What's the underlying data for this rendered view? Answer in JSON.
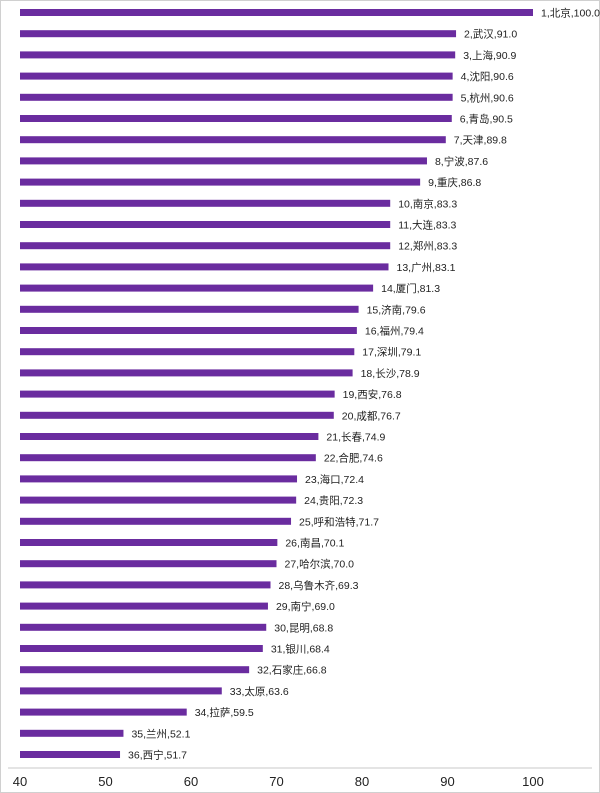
{
  "chart_data": {
    "type": "bar",
    "orientation": "horizontal",
    "title": "",
    "xlabel": "",
    "ylabel": "",
    "xlim": [
      40,
      100
    ],
    "x_ticks": [
      40,
      50,
      60,
      70,
      80,
      90,
      100
    ],
    "grid": false,
    "legend": "none",
    "bar_color": "#6a2c9f",
    "categories": [
      "北京",
      "武汉",
      "上海",
      "沈阳",
      "杭州",
      "青岛",
      "天津",
      "宁波",
      "重庆",
      "南京",
      "大连",
      "郑州",
      "广州",
      "厦门",
      "济南",
      "福州",
      "深圳",
      "长沙",
      "西安",
      "成都",
      "长春",
      "合肥",
      "海口",
      "贵阳",
      "呼和浩特",
      "南昌",
      "哈尔滨",
      "乌鲁木齐",
      "南宁",
      "昆明",
      "银川",
      "石家庄",
      "太原",
      "拉萨",
      "兰州",
      "西宁"
    ],
    "values": [
      100.0,
      91.0,
      90.9,
      90.6,
      90.6,
      90.5,
      89.8,
      87.6,
      86.8,
      83.3,
      83.3,
      83.3,
      83.1,
      81.3,
      79.6,
      79.4,
      79.1,
      78.9,
      76.8,
      76.7,
      74.9,
      74.6,
      72.4,
      72.3,
      71.7,
      70.1,
      70.0,
      69.3,
      69.0,
      68.8,
      68.4,
      66.8,
      63.6,
      59.5,
      52.1,
      51.7
    ],
    "data_labels": [
      "1,北京,100.0",
      "2,武汉,91.0",
      "3,上海,90.9",
      "4,沈阳,90.6",
      "5,杭州,90.6",
      "6,青岛,90.5",
      "7,天津,89.8",
      "8,宁波,87.6",
      "9,重庆,86.8",
      "10,南京,83.3",
      "11,大连,83.3",
      "12,郑州,83.3",
      "13,广州,83.1",
      "14,厦门,81.3",
      "15,济南,79.6",
      "16,福州,79.4",
      "17,深圳,79.1",
      "18,长沙,78.9",
      "19,西安,76.8",
      "20,成都,76.7",
      "21,长春,74.9",
      "22,合肥,74.6",
      "23,海口,72.4",
      "24,贵阳,72.3",
      "25,呼和浩特,71.7",
      "26,南昌,70.1",
      "27,哈尔滨,70.0",
      "28,乌鲁木齐,69.3",
      "29,南宁,69.0",
      "30,昆明,68.8",
      "31,银川,68.4",
      "32,石家庄,66.8",
      "33,太原,63.6",
      "34,拉萨,59.5",
      "35,兰州,52.1",
      "36,西宁,51.7"
    ]
  }
}
